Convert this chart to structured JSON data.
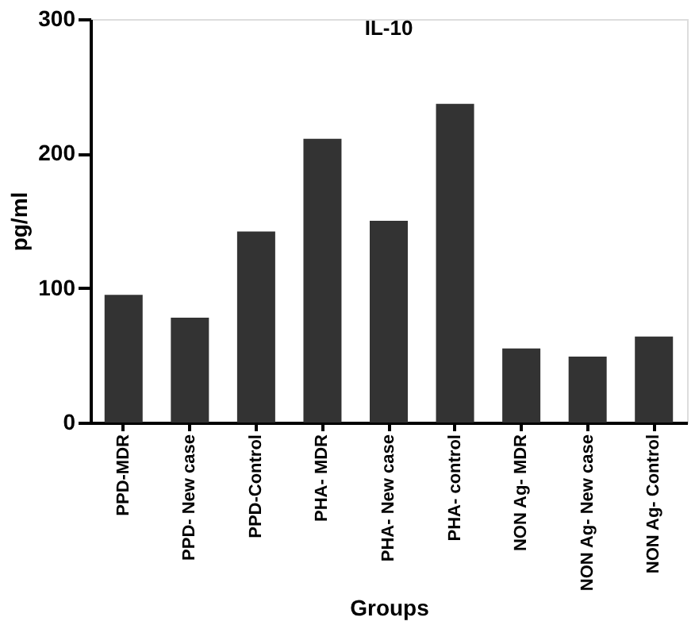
{
  "chart_data": {
    "type": "bar",
    "title": "IL-10",
    "xlabel": "Groups",
    "ylabel": "pg/ml",
    "categories": [
      "PPD-MDR",
      "PPD- New case",
      "PPD-Control",
      "PHA- MDR",
      "PHA- New case",
      "PHA- control",
      "NON Ag- MDR",
      "NON Ag- New case",
      "NON Ag- Control"
    ],
    "values": [
      95,
      78,
      142,
      211,
      150,
      237,
      55,
      49,
      64
    ],
    "color": "#333333",
    "ylim": [
      0,
      300
    ],
    "yticks": [
      0,
      100,
      200,
      300
    ],
    "grid": false
  }
}
